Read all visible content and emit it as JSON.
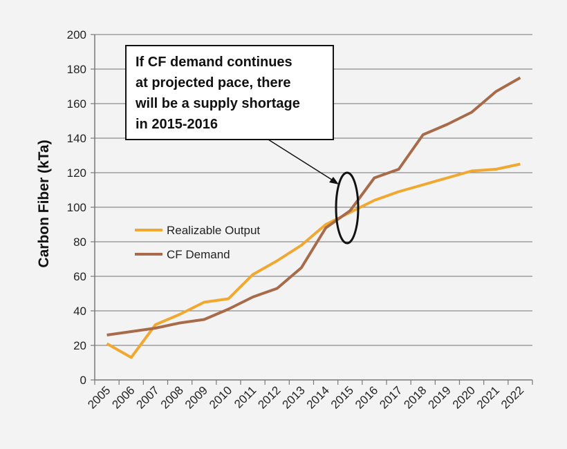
{
  "chart_data": {
    "type": "line",
    "title": "",
    "xlabel": "",
    "ylabel": "Carbon Fiber (kTa)",
    "ylim": [
      0,
      200
    ],
    "yticks": [
      0,
      20,
      40,
      60,
      80,
      100,
      120,
      140,
      160,
      180,
      200
    ],
    "categories": [
      "2005",
      "2006",
      "2007",
      "2008",
      "2009",
      "2010",
      "2011",
      "2012",
      "2013",
      "2014",
      "2015",
      "2016",
      "2017",
      "2018",
      "2019",
      "2020",
      "2021",
      "2022"
    ],
    "grid": true,
    "legend_position": "center-left",
    "series": [
      {
        "name": "Realizable Output",
        "color": "#f0a830",
        "values": [
          21,
          13,
          32,
          38,
          45,
          47,
          61,
          69,
          78,
          90,
          97,
          104,
          109,
          113,
          117,
          121,
          122,
          125
        ]
      },
      {
        "name": "CF Demand",
        "color": "#a86b4a",
        "values": [
          26,
          28,
          30,
          33,
          35,
          41,
          48,
          53,
          65,
          88,
          98,
          117,
          122,
          142,
          148,
          155,
          167,
          175
        ]
      }
    ],
    "annotation": {
      "text_lines": [
        "If CF demand continues",
        "at projected pace, there",
        "will be a supply shortage",
        "in 2015-2016"
      ],
      "highlight": "ellipse around 2015 crossover"
    }
  }
}
